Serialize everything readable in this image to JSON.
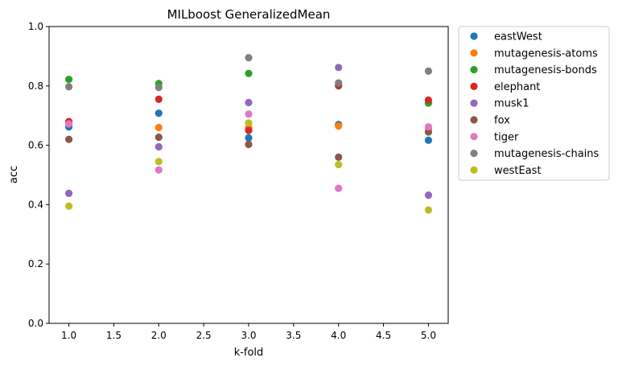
{
  "chart_data": {
    "type": "scatter",
    "title": "MILboost GeneralizedMean",
    "xlabel": "k-fold",
    "ylabel": "acc",
    "xlim": [
      0.78,
      5.22
    ],
    "ylim": [
      0.0,
      1.0
    ],
    "xticks": [
      "1.0",
      "1.5",
      "2.0",
      "2.5",
      "3.0",
      "3.5",
      "4.0",
      "4.5",
      "5.0"
    ],
    "yticks": [
      "0.0",
      "0.2",
      "0.4",
      "0.6",
      "0.8",
      "1.0"
    ],
    "grid": false,
    "legend_position": "outside-right",
    "x": [
      1,
      2,
      3,
      4,
      5
    ],
    "series": [
      {
        "name": "eastWest",
        "color": "#1f77b4",
        "values": [
          0.662,
          0.708,
          0.625,
          0.67,
          0.617
        ]
      },
      {
        "name": "mutagenesis-atoms",
        "color": "#ff7f0e",
        "values": [
          0.675,
          0.66,
          0.66,
          0.665,
          0.655
        ]
      },
      {
        "name": "mutagenesis-bonds",
        "color": "#2ca02c",
        "values": [
          0.822,
          0.808,
          0.842,
          0.8,
          0.742
        ]
      },
      {
        "name": "elephant",
        "color": "#d62728",
        "values": [
          0.68,
          0.755,
          0.65,
          0.802,
          0.752
        ]
      },
      {
        "name": "musk1",
        "color": "#9467bd",
        "values": [
          0.438,
          0.595,
          0.744,
          0.862,
          0.432
        ]
      },
      {
        "name": "fox",
        "color": "#8c564b",
        "values": [
          0.62,
          0.627,
          0.603,
          0.56,
          0.645
        ]
      },
      {
        "name": "tiger",
        "color": "#e377c2",
        "values": [
          0.672,
          0.517,
          0.705,
          0.455,
          0.662
        ]
      },
      {
        "name": "mutagenesis-chains",
        "color": "#7f7f7f",
        "values": [
          0.797,
          0.795,
          0.895,
          0.81,
          0.85
        ]
      },
      {
        "name": "westEast",
        "color": "#bcbd22",
        "values": [
          0.395,
          0.545,
          0.675,
          0.535,
          0.382
        ]
      }
    ]
  }
}
